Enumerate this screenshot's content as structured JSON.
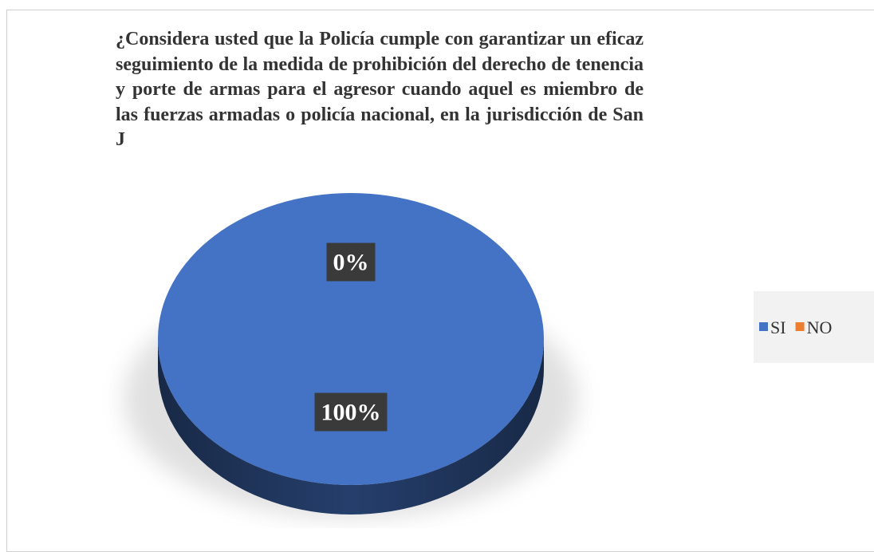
{
  "chart_data": {
    "type": "pie",
    "title": "¿Considera usted que la Policía cumple con garantizar un eficaz seguimiento de la medida de prohibición del derecho de tenencia y porte de armas para el agresor cuando aquel es miembro de las fuerzas armadas o policía nacional, en la jurisdicción de San J",
    "categories": [
      "SI",
      "NO"
    ],
    "values": [
      100,
      0
    ],
    "value_labels": [
      "100%",
      "0%"
    ],
    "colors": [
      "#4472c4",
      "#ed7d31"
    ],
    "legend": "right"
  }
}
